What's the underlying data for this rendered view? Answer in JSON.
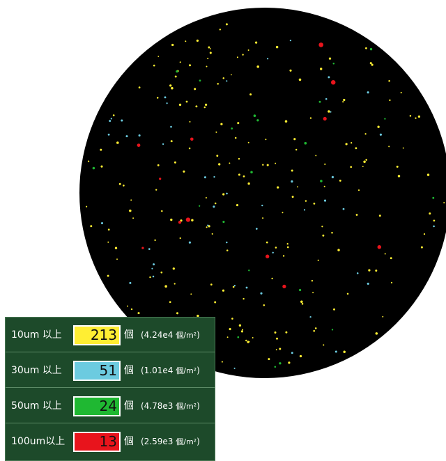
{
  "colors": {
    "background": "#ffffff",
    "wafer": "#000000",
    "panel": "#1d4a2a",
    "size_10um": "#ffee33",
    "size_30um": "#6ccbe0",
    "size_50um": "#1fb832",
    "size_100um": "#e8141c"
  },
  "count_rows": [
    {
      "label": "10um 以上",
      "count": "213",
      "unit": "個",
      "density_open": "(4.24e4 ",
      "density_unit": "個/m²",
      "density_close": ")",
      "color": "#ffee33"
    },
    {
      "label": "30um 以上",
      "count": "51",
      "unit": "個",
      "density_open": "(1.01e4 ",
      "density_unit": "個/m²",
      "density_close": ")",
      "color": "#6ccbe0"
    },
    {
      "label": "50um 以上",
      "count": "24",
      "unit": "個",
      "density_open": "(4.78e3 ",
      "density_unit": "個/m²",
      "density_close": ")",
      "color": "#1fb832"
    },
    {
      "label": "100um以上",
      "count": "13",
      "unit": "個",
      "density_open": "(2.59e3 ",
      "density_unit": "個/m²",
      "density_close": ")",
      "color": "#e8141c"
    }
  ]
}
